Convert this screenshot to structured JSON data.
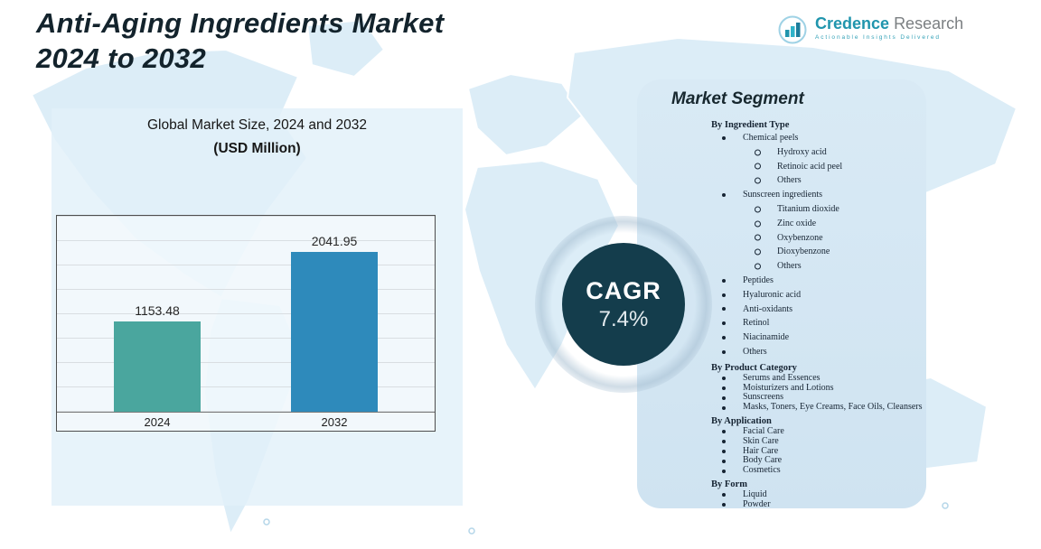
{
  "title": {
    "line1": "Anti-Aging Ingredients Market",
    "line2": "2024 to 2032"
  },
  "logo": {
    "name_primary": "Credence",
    "name_secondary": "Research",
    "tagline": "Actionable Insights Delivered"
  },
  "subtitle": {
    "line1": "Global Market Size, 2024 and 2032",
    "line2": "(USD Million)"
  },
  "chart_data": {
    "type": "bar",
    "title": "Global Market Size, 2024 and 2032 (USD Million)",
    "categories": [
      "2024",
      "2032"
    ],
    "values": [
      1153.48,
      2041.95
    ],
    "value_labels": [
      "1153.48",
      "2041.95"
    ],
    "unit": "USD Million",
    "ylim": [
      0,
      2500
    ],
    "grid": true,
    "legend": "none",
    "bar_colors": [
      "#4aa69e",
      "#2e8abb"
    ]
  },
  "cagr": {
    "label": "CAGR",
    "value": "7.4%"
  },
  "segments": {
    "title": "Market Segment",
    "groups": [
      {
        "heading": "By Ingredient Type",
        "items": [
          {
            "label": "Chemical peels",
            "children": [
              "Hydroxy acid",
              "Retinoic acid peel",
              "Others"
            ]
          },
          {
            "label": "Sunscreen ingredients",
            "children": [
              "Titanium dioxide",
              "Zinc oxide",
              "Oxybenzone",
              "Dioxybenzone",
              "Others"
            ]
          },
          {
            "label": "Peptides"
          },
          {
            "label": "Hyaluronic acid"
          },
          {
            "label": "Anti-oxidants"
          },
          {
            "label": "Retinol"
          },
          {
            "label": "Niacinamide"
          },
          {
            "label": "Others"
          }
        ]
      },
      {
        "heading": "By Product Category",
        "items": [
          {
            "label": "Serums and Essences"
          },
          {
            "label": "Moisturizers and Lotions"
          },
          {
            "label": "Sunscreens"
          },
          {
            "label": "Masks, Toners, Eye Creams, Face Oils, Cleansers"
          }
        ]
      },
      {
        "heading": "By Application",
        "items": [
          {
            "label": "Facial Care"
          },
          {
            "label": "Skin Care"
          },
          {
            "label": "Hair Care"
          },
          {
            "label": "Body Care"
          },
          {
            "label": "Cosmetics"
          }
        ]
      },
      {
        "heading": "By Form",
        "items": [
          {
            "label": "Liquid"
          },
          {
            "label": "Powder"
          }
        ]
      }
    ]
  },
  "colors": {
    "accent_teal": "#4aa69e",
    "accent_blue": "#2e8abb",
    "cagr_circle": "#143d4c",
    "panel_background": "#d2e6f2",
    "map_fill": "#dcedf7",
    "title_text": "#13232c",
    "logo_teal": "#2095ad"
  }
}
